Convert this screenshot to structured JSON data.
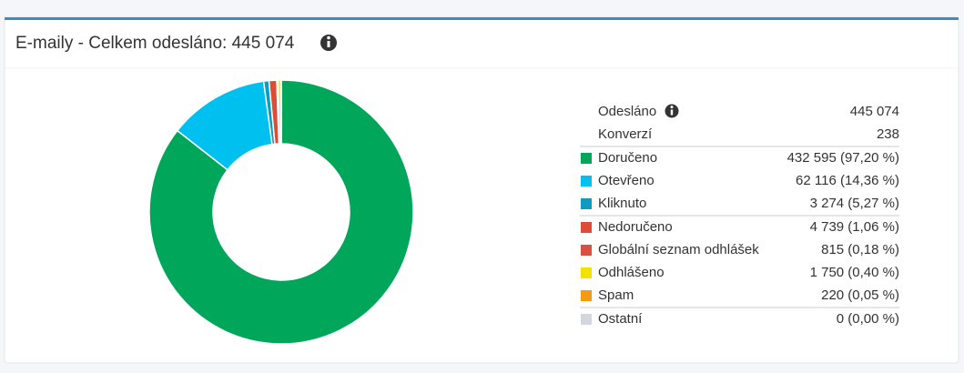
{
  "header": {
    "title": "E-maily - Celkem odesláno: 445 074"
  },
  "summary": [
    {
      "label": "Odesláno",
      "value": "445 074"
    },
    {
      "label": "Konverzí",
      "value": "238"
    }
  ],
  "chart_data": {
    "type": "donut",
    "categories": [
      "Doručeno",
      "Otevřeno",
      "Kliknuto",
      "Nedoručeno",
      "Globální seznam odhlášek",
      "Odhlášeno",
      "Spam",
      "Ostatní"
    ],
    "values": [
      432595,
      62116,
      3274,
      4739,
      815,
      1750,
      220,
      0
    ],
    "value_labels": [
      "432 595 (97,20 %)",
      "62 116 (14,36 %)",
      "3 274 (5,27 %)",
      "4 739 (1,06 %)",
      "815 (0,18 %)",
      "1 750 (0,40 %)",
      "220 (0,05 %)",
      "0 (0,00 %)"
    ],
    "colors": [
      "#00a65a",
      "#00c0ef",
      "#0f9ac0",
      "#dd4b39",
      "#d9503f",
      "#f5e100",
      "#f39c12",
      "#d2d6de"
    ]
  }
}
